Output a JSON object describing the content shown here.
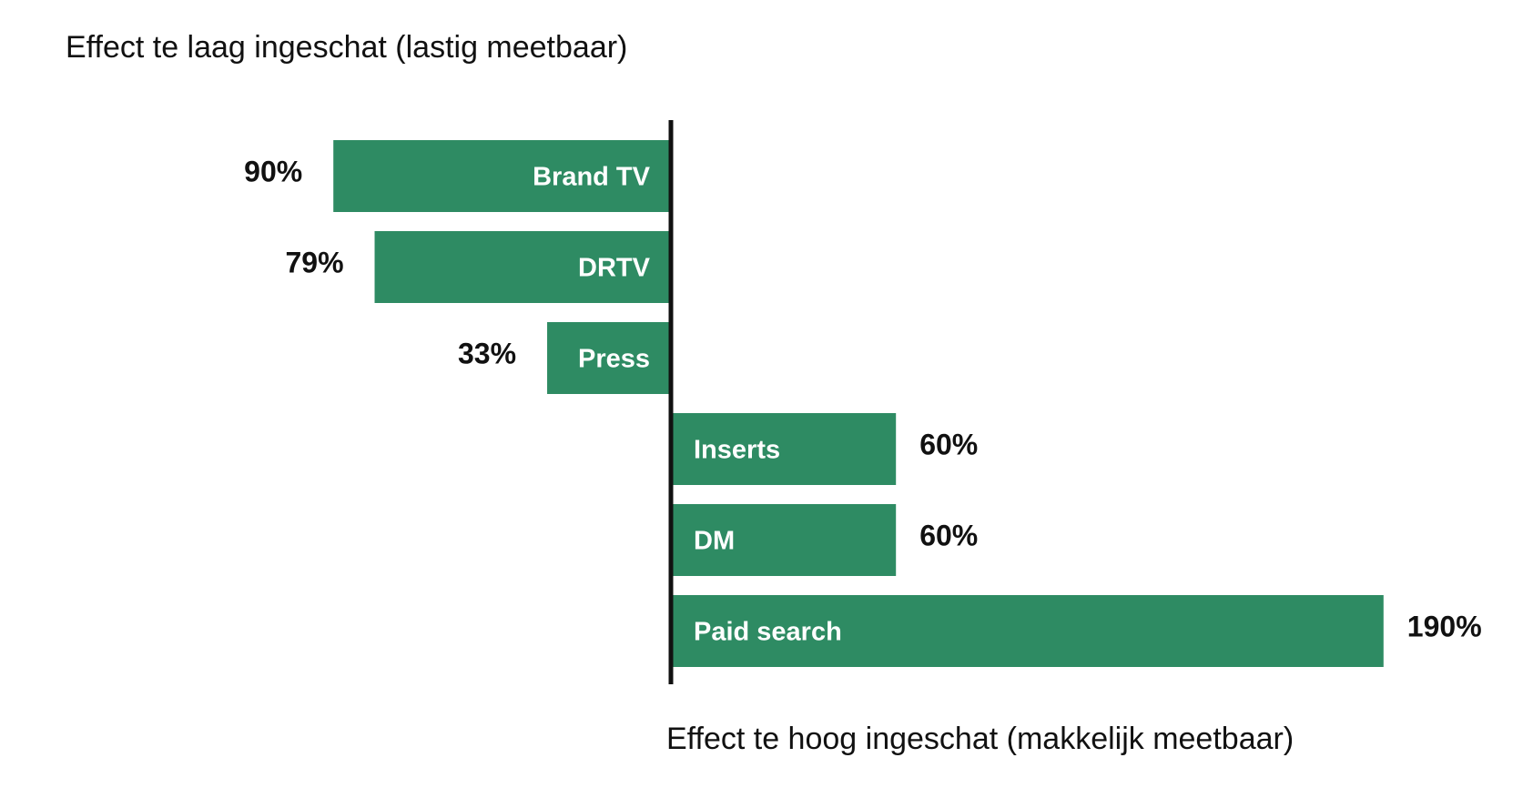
{
  "chart_data": {
    "type": "bar",
    "orientation": "horizontal-diverging",
    "label_under": "Effect te laag ingeschat (lastig meetbaar)",
    "label_over": "Effect te hoog ingeschat (makkelijk meetbaar)",
    "bar_color": "#2e8b63",
    "axis_color": "#111111",
    "grid": false,
    "unit": "%",
    "series": [
      {
        "values": [
          {
            "category": "Brand TV",
            "value": -90,
            "label": "90%"
          },
          {
            "category": "DRTV",
            "value": -79,
            "label": "79%"
          },
          {
            "category": "Press",
            "value": -33,
            "label": "33%"
          },
          {
            "category": "Inserts",
            "value": 60,
            "label": "60%"
          },
          {
            "category": "DM",
            "value": 60,
            "label": "60%"
          },
          {
            "category": "Paid search",
            "value": 190,
            "label": "190%"
          }
        ]
      }
    ]
  }
}
